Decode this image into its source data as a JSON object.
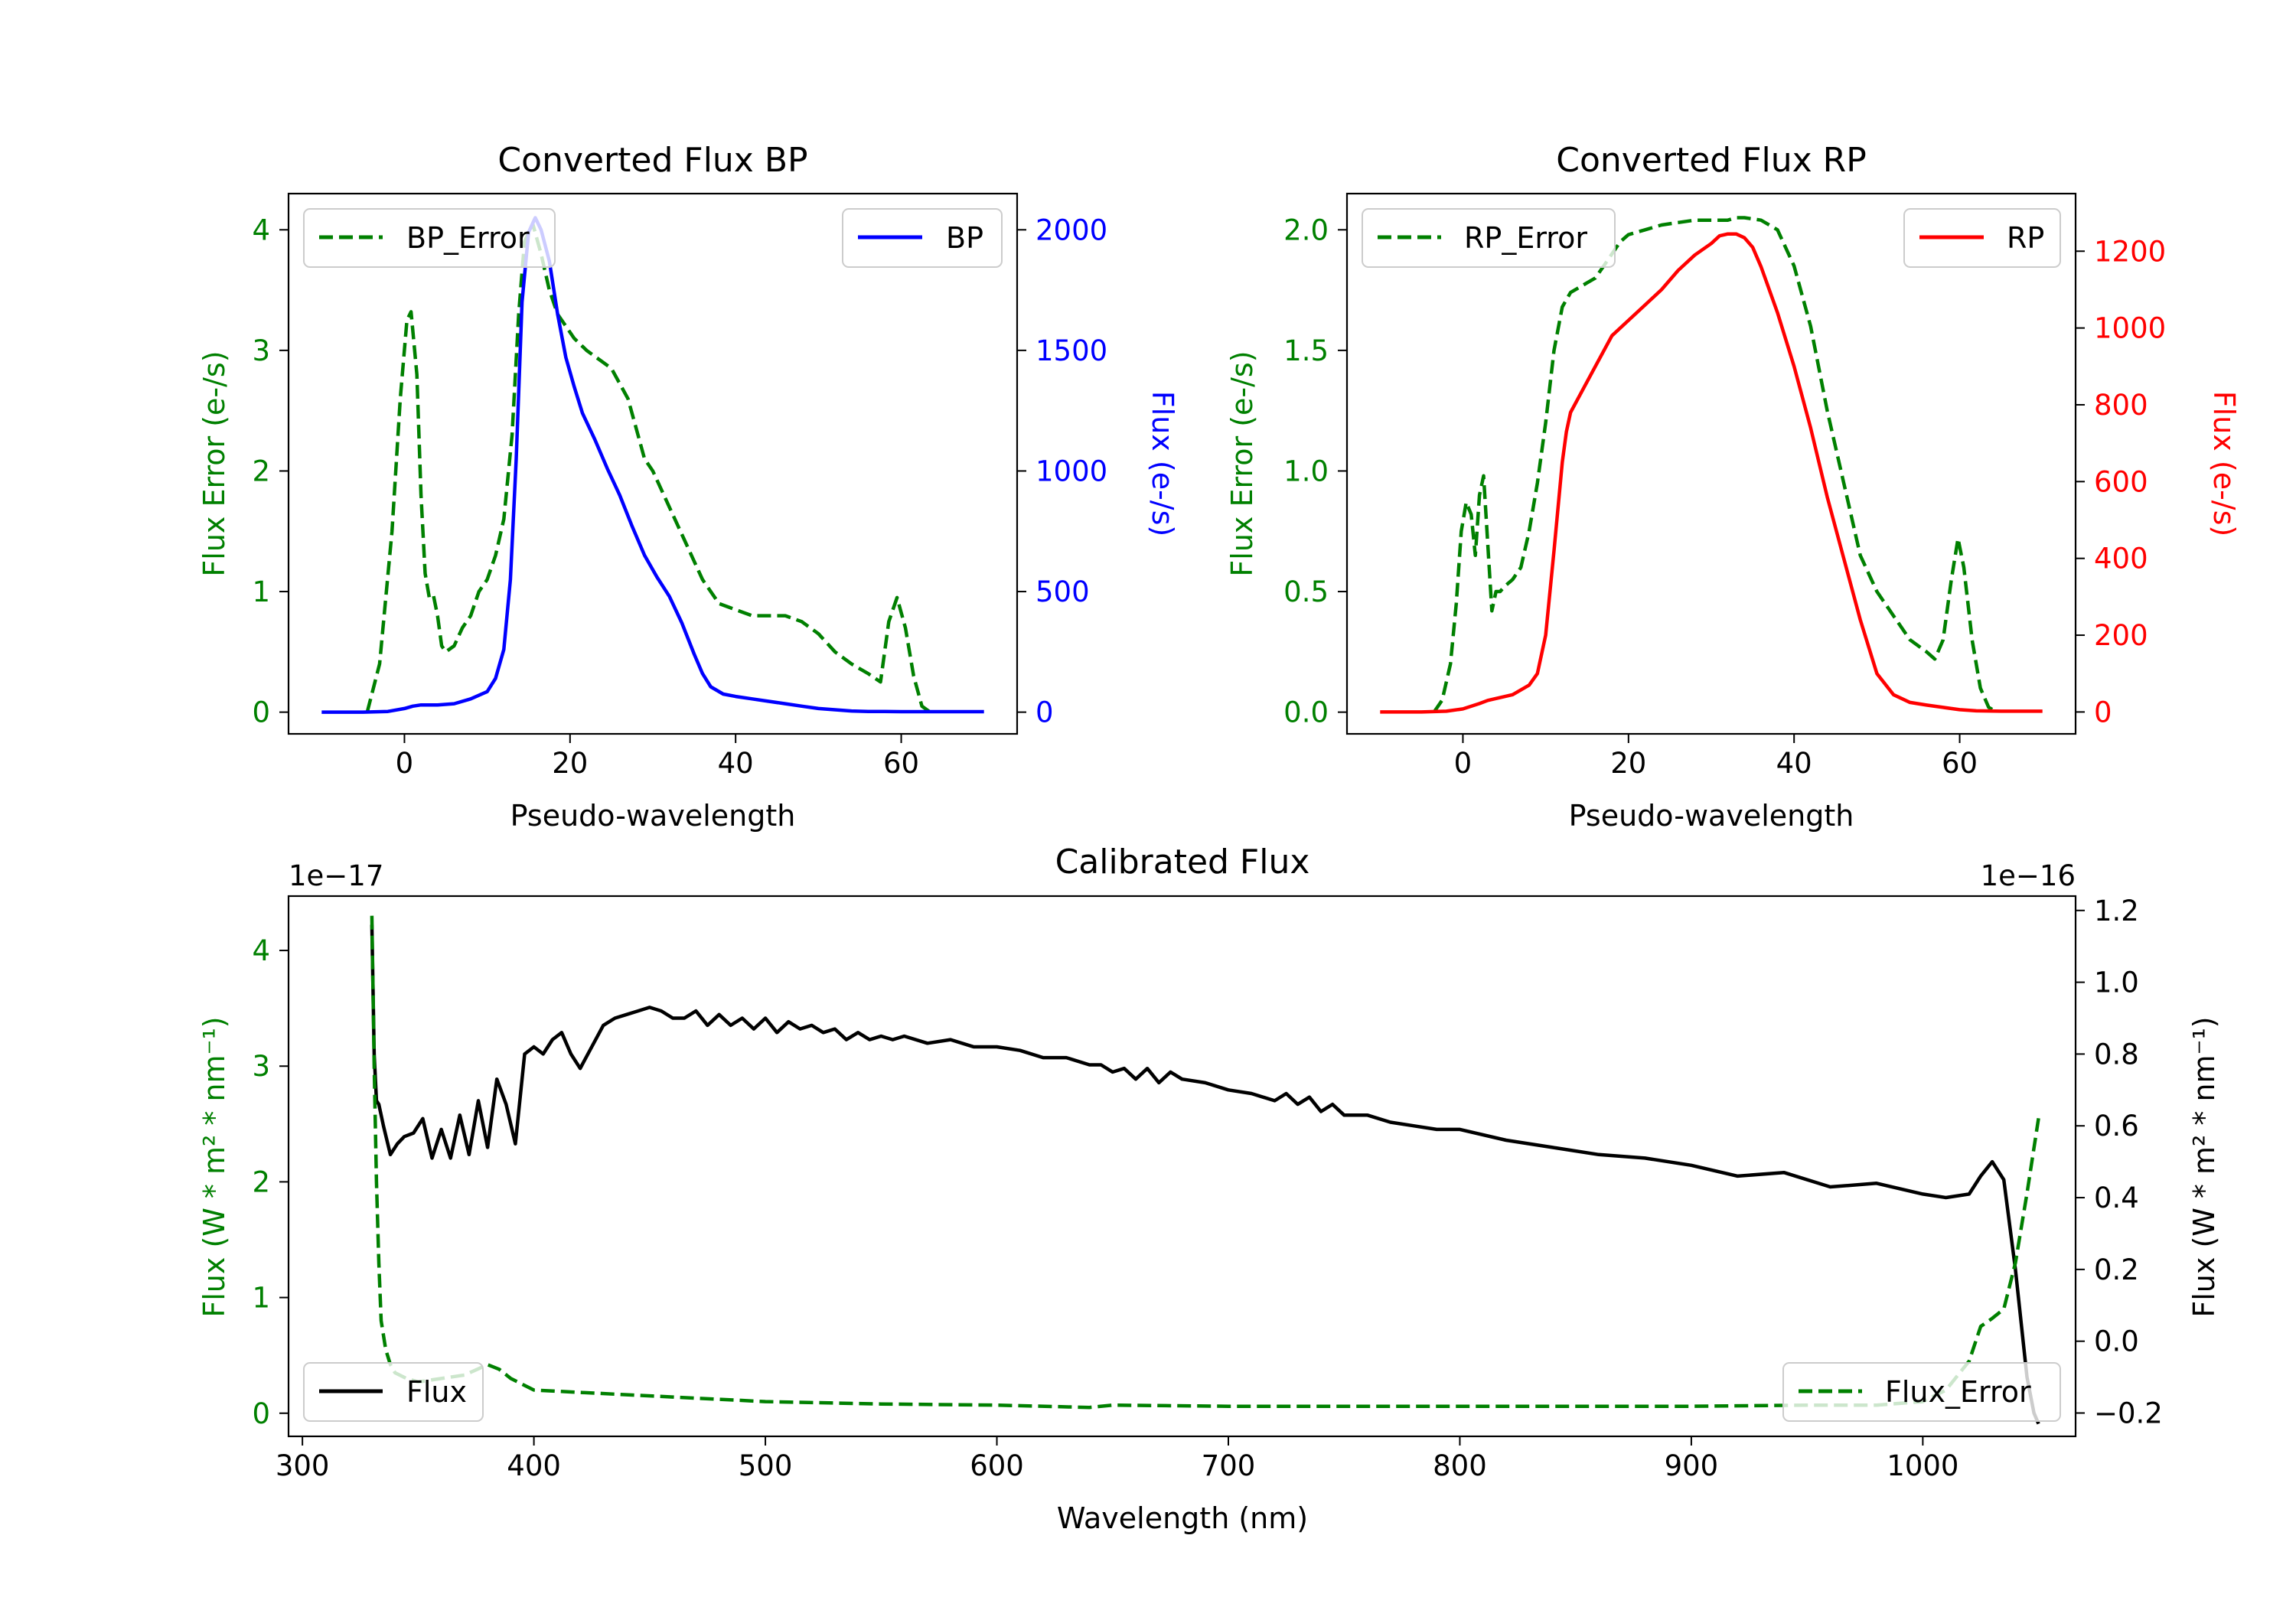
{
  "colors": {
    "green": "#008000",
    "blue": "#0000ff",
    "red": "#ff0000",
    "black": "#000000"
  },
  "chart_data": [
    {
      "type": "line",
      "title": "Converted Flux BP",
      "xlabel": "Pseudo-wavelength",
      "ylabel_left": "Flux Error (e-/s)",
      "ylabel_right": "Flux (e-/s)",
      "xlim": [
        -14,
        74
      ],
      "ylim_left": [
        -0.18,
        4.3
      ],
      "ylim_right": [
        -90,
        2150
      ],
      "xticks": [
        0,
        20,
        40,
        60
      ],
      "yticks_left": [
        0,
        1,
        2,
        3,
        4
      ],
      "yticks_right": [
        0,
        500,
        1000,
        1500,
        2000
      ],
      "legend_left": "BP_Error",
      "legend_right": "BP",
      "series": [
        {
          "name": "BP_Error",
          "axis": "left",
          "style": "dashed",
          "color": "#008000",
          "x": [
            -4.5,
            -3,
            -1.5,
            -0.5,
            0.3,
            0.8,
            1.5,
            2,
            2.5,
            3,
            3.5,
            4,
            4.5,
            5,
            6,
            7,
            8,
            9,
            10,
            11,
            12,
            13,
            13.8,
            14.5,
            15.5,
            16.5,
            17.5,
            18.5,
            19.5,
            20.5,
            22,
            24,
            25,
            27,
            28,
            29,
            30,
            32,
            34,
            36,
            38,
            40,
            42,
            44,
            46,
            48,
            50,
            52,
            54,
            56,
            57.5,
            58.5,
            59.5,
            60.5,
            61.5,
            62.5,
            63.5
          ],
          "y": [
            0,
            0.4,
            1.5,
            2.6,
            3.25,
            3.32,
            2.8,
            1.8,
            1.15,
            0.95,
            0.97,
            0.8,
            0.55,
            0.5,
            0.55,
            0.7,
            0.8,
            1.0,
            1.1,
            1.3,
            1.6,
            2.3,
            3.3,
            3.9,
            4.05,
            3.8,
            3.5,
            3.3,
            3.2,
            3.1,
            3.0,
            2.9,
            2.85,
            2.6,
            2.35,
            2.1,
            2.0,
            1.7,
            1.4,
            1.1,
            0.9,
            0.85,
            0.8,
            0.8,
            0.8,
            0.75,
            0.65,
            0.5,
            0.4,
            0.32,
            0.25,
            0.75,
            0.95,
            0.7,
            0.3,
            0.05,
            0
          ]
        },
        {
          "name": "BP",
          "axis": "right",
          "style": "solid",
          "color": "#0000ff",
          "x": [
            -10,
            -5,
            -2,
            0,
            1,
            2,
            4,
            6,
            8,
            10,
            11,
            12,
            12.8,
            13.5,
            14.2,
            15,
            15.8,
            16.5,
            17.5,
            18.5,
            19.5,
            20.5,
            21.5,
            23,
            24.5,
            26,
            27.5,
            29,
            30.5,
            32,
            33.5,
            35,
            36,
            37,
            38.5,
            40,
            42,
            44,
            46,
            48,
            50,
            52,
            54,
            56,
            58,
            60,
            62,
            65,
            70
          ],
          "y": [
            0,
            0,
            3,
            15,
            25,
            30,
            30,
            35,
            55,
            85,
            140,
            260,
            550,
            1050,
            1700,
            1990,
            2050,
            2000,
            1870,
            1650,
            1470,
            1350,
            1240,
            1130,
            1010,
            900,
            770,
            650,
            560,
            480,
            370,
            240,
            160,
            105,
            75,
            65,
            55,
            45,
            35,
            25,
            15,
            10,
            5,
            3,
            3,
            2,
            2,
            2,
            2
          ]
        }
      ]
    },
    {
      "type": "line",
      "title": "Converted Flux RP",
      "xlabel": "Pseudo-wavelength",
      "ylabel_left": "Flux Error (e-/s)",
      "ylabel_right": "Flux (e-/s)",
      "xlim": [
        -14,
        74
      ],
      "ylim_left": [
        -0.09,
        2.15
      ],
      "ylim_right": [
        -57,
        1350
      ],
      "xticks": [
        0,
        20,
        40,
        60
      ],
      "yticks_left": [
        0.0,
        0.5,
        1.0,
        1.5,
        2.0
      ],
      "yticks_left_labels": [
        "0.0",
        "0.5",
        "1.0",
        "1.5",
        "2.0"
      ],
      "yticks_right": [
        0,
        200,
        400,
        600,
        800,
        1000,
        1200
      ],
      "legend_left": "RP_Error",
      "legend_right": "RP",
      "series": [
        {
          "name": "RP_Error",
          "axis": "left",
          "style": "dashed",
          "color": "#008000",
          "x": [
            -3.5,
            -2.5,
            -1.5,
            -0.8,
            -0.2,
            0.4,
            1,
            1.5,
            2,
            2.5,
            3,
            3.5,
            4,
            4.5,
            5,
            6,
            7,
            8,
            9,
            10,
            11,
            12,
            13,
            14,
            15,
            16,
            17,
            18,
            19,
            20,
            22,
            24,
            26,
            28,
            30,
            32,
            33,
            34,
            36,
            38,
            40,
            42,
            44,
            46,
            48,
            50,
            52,
            54,
            56,
            57,
            58,
            59,
            59.8,
            60.5,
            61.5,
            62.5,
            63.5,
            64.5
          ],
          "y": [
            0,
            0.05,
            0.2,
            0.45,
            0.75,
            0.87,
            0.82,
            0.65,
            0.9,
            0.98,
            0.7,
            0.42,
            0.5,
            0.5,
            0.52,
            0.55,
            0.6,
            0.75,
            0.95,
            1.2,
            1.5,
            1.68,
            1.74,
            1.76,
            1.78,
            1.8,
            1.85,
            1.9,
            1.95,
            1.98,
            2.0,
            2.02,
            2.03,
            2.04,
            2.04,
            2.04,
            2.05,
            2.05,
            2.04,
            2.0,
            1.85,
            1.6,
            1.25,
            0.95,
            0.65,
            0.5,
            0.4,
            0.3,
            0.25,
            0.22,
            0.3,
            0.55,
            0.72,
            0.6,
            0.3,
            0.1,
            0.02,
            0
          ]
        },
        {
          "name": "RP",
          "axis": "right",
          "style": "solid",
          "color": "#ff0000",
          "x": [
            -10,
            -5,
            -2,
            0,
            1,
            2,
            3,
            4,
            6,
            8,
            9,
            10,
            11,
            12,
            12.5,
            13,
            14,
            16,
            18,
            20,
            22,
            24,
            26,
            28,
            30,
            31,
            32,
            33,
            34,
            35,
            36,
            37,
            38,
            40,
            42,
            44,
            46,
            48,
            50,
            52,
            54,
            56,
            58,
            60,
            62,
            65,
            70
          ],
          "y": [
            0,
            0,
            2,
            8,
            15,
            22,
            30,
            35,
            45,
            70,
            100,
            200,
            420,
            650,
            730,
            780,
            820,
            900,
            980,
            1020,
            1060,
            1100,
            1150,
            1190,
            1220,
            1240,
            1245,
            1245,
            1235,
            1210,
            1160,
            1100,
            1040,
            900,
            740,
            560,
            400,
            240,
            100,
            45,
            25,
            18,
            12,
            6,
            3,
            2,
            2
          ]
        }
      ]
    },
    {
      "type": "line",
      "title": "Calibrated Flux",
      "xlabel": "Wavelength (nm)",
      "ylabel_left": "Flux (W * m² * nm⁻¹)",
      "ylabel_right": "Flux (W * m² * nm⁻¹)",
      "offset_left": "1e−17",
      "offset_right": "1e−16",
      "xlim": [
        294,
        1066
      ],
      "ylim_left": [
        -0.2,
        4.47
      ],
      "ylim_right": [
        -0.265,
        1.24
      ],
      "xticks": [
        300,
        400,
        500,
        600,
        700,
        800,
        900,
        1000
      ],
      "yticks_left": [
        0,
        1,
        2,
        3,
        4
      ],
      "yticks_right": [
        -0.2,
        0.0,
        0.2,
        0.4,
        0.6,
        0.8,
        1.0,
        1.2
      ],
      "yticks_right_labels": [
        "−0.2",
        "0.0",
        "0.2",
        "0.4",
        "0.6",
        "0.8",
        "1.0",
        "1.2"
      ],
      "legend_left": "Flux",
      "legend_right": "Flux_Error",
      "series": [
        {
          "name": "Flux",
          "axis": "right",
          "style": "solid",
          "color": "#000000",
          "x": [
            330,
            331,
            332,
            333,
            335,
            338,
            341,
            344,
            348,
            352,
            356,
            360,
            364,
            368,
            372,
            376,
            380,
            384,
            388,
            392,
            396,
            400,
            404,
            408,
            412,
            416,
            420,
            425,
            430,
            435,
            440,
            445,
            450,
            455,
            460,
            465,
            470,
            475,
            480,
            485,
            490,
            495,
            500,
            505,
            510,
            515,
            520,
            525,
            530,
            535,
            540,
            545,
            550,
            555,
            560,
            570,
            580,
            590,
            600,
            610,
            620,
            630,
            640,
            645,
            650,
            655,
            660,
            665,
            670,
            675,
            680,
            690,
            700,
            710,
            720,
            725,
            730,
            735,
            740,
            745,
            750,
            760,
            770,
            780,
            790,
            800,
            820,
            840,
            860,
            880,
            900,
            920,
            940,
            960,
            980,
            1000,
            1010,
            1020,
            1025,
            1030,
            1035,
            1040,
            1045,
            1048,
            1050
          ],
          "y": [
            1.16,
            0.8,
            0.67,
            0.66,
            0.6,
            0.52,
            0.55,
            0.57,
            0.58,
            0.62,
            0.51,
            0.59,
            0.51,
            0.63,
            0.52,
            0.67,
            0.54,
            0.73,
            0.66,
            0.55,
            0.8,
            0.82,
            0.8,
            0.84,
            0.86,
            0.8,
            0.76,
            0.82,
            0.88,
            0.9,
            0.91,
            0.92,
            0.93,
            0.92,
            0.9,
            0.9,
            0.92,
            0.88,
            0.91,
            0.88,
            0.9,
            0.87,
            0.9,
            0.86,
            0.89,
            0.87,
            0.88,
            0.86,
            0.87,
            0.84,
            0.86,
            0.84,
            0.85,
            0.84,
            0.85,
            0.83,
            0.84,
            0.82,
            0.82,
            0.81,
            0.79,
            0.79,
            0.77,
            0.77,
            0.75,
            0.76,
            0.73,
            0.76,
            0.72,
            0.75,
            0.73,
            0.72,
            0.7,
            0.69,
            0.67,
            0.69,
            0.66,
            0.68,
            0.64,
            0.66,
            0.63,
            0.63,
            0.61,
            0.6,
            0.59,
            0.59,
            0.56,
            0.54,
            0.52,
            0.51,
            0.49,
            0.46,
            0.47,
            0.43,
            0.44,
            0.41,
            0.4,
            0.41,
            0.46,
            0.5,
            0.45,
            0.2,
            -0.1,
            -0.2,
            -0.23
          ]
        },
        {
          "name": "Flux_Error",
          "axis": "left",
          "style": "dashed",
          "color": "#008000",
          "x": [
            330,
            331,
            332,
            333,
            334,
            336,
            338,
            340,
            345,
            350,
            360,
            370,
            380,
            385,
            390,
            400,
            420,
            440,
            460,
            480,
            500,
            550,
            600,
            640,
            650,
            700,
            750,
            800,
            850,
            900,
            950,
            980,
            1000,
            1010,
            1020,
            1025,
            1030,
            1035,
            1040,
            1045,
            1050
          ],
          "y": [
            4.3,
            3.0,
            2.0,
            1.3,
            0.8,
            0.55,
            0.42,
            0.35,
            0.3,
            0.27,
            0.3,
            0.33,
            0.42,
            0.38,
            0.3,
            0.2,
            0.18,
            0.16,
            0.14,
            0.12,
            0.1,
            0.08,
            0.07,
            0.05,
            0.07,
            0.06,
            0.06,
            0.06,
            0.06,
            0.06,
            0.07,
            0.07,
            0.1,
            0.2,
            0.45,
            0.75,
            0.82,
            0.9,
            1.3,
            1.9,
            2.55
          ]
        }
      ]
    }
  ]
}
